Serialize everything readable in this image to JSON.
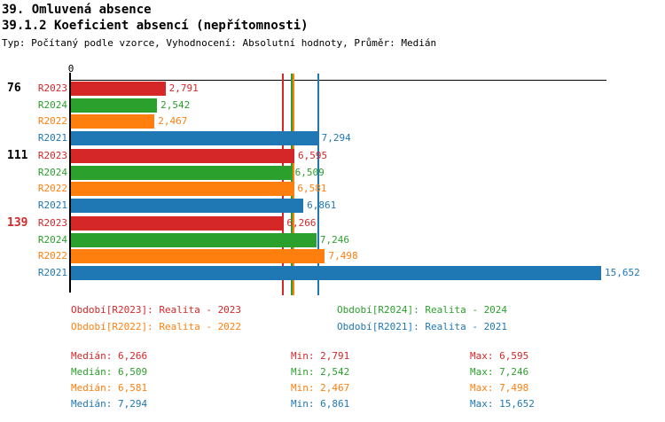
{
  "header": {
    "title": "39. Omluvená absence",
    "subtitle": "39.1.2 Koeficient absencí (nepřítomnosti)",
    "meta": "Typ: Počítaný podle vzorce, Vyhodnocení: Absolutní hodnoty, Průměr: Medián"
  },
  "chart_data": {
    "type": "bar",
    "orientation": "horizontal",
    "x_origin_label": "0",
    "xlim": [
      0,
      15652
    ],
    "grid": false,
    "series_order": [
      "R2023",
      "R2024",
      "R2022",
      "R2021"
    ],
    "series_colors": {
      "R2023": "#d62728",
      "R2024": "#2ca02c",
      "R2022": "#ff7f0e",
      "R2021": "#1f77b4"
    },
    "medians": {
      "R2023": 6266,
      "R2024": 6509,
      "R2022": 6581,
      "R2021": 7294
    },
    "groups": [
      {
        "label": "76",
        "label_color": "#000000",
        "bars": [
          {
            "series": "R2023",
            "value": 2791,
            "display": "2,791"
          },
          {
            "series": "R2024",
            "value": 2542,
            "display": "2,542"
          },
          {
            "series": "R2022",
            "value": 2467,
            "display": "2,467"
          },
          {
            "series": "R2021",
            "value": 7294,
            "display": "7,294"
          }
        ]
      },
      {
        "label": "111",
        "label_color": "#000000",
        "bars": [
          {
            "series": "R2023",
            "value": 6595,
            "display": "6,595"
          },
          {
            "series": "R2024",
            "value": 6509,
            "display": "6,509"
          },
          {
            "series": "R2022",
            "value": 6581,
            "display": "6,581"
          },
          {
            "series": "R2021",
            "value": 6861,
            "display": "6,861"
          }
        ]
      },
      {
        "label": "139",
        "label_color": "#d62728",
        "bars": [
          {
            "series": "R2023",
            "value": 6266,
            "display": "6,266"
          },
          {
            "series": "R2024",
            "value": 7246,
            "display": "7,246"
          },
          {
            "series": "R2022",
            "value": 7498,
            "display": "7,498"
          },
          {
            "series": "R2021",
            "value": 15652,
            "display": "15,652"
          }
        ]
      }
    ]
  },
  "legend": {
    "items": [
      {
        "series": "R2023",
        "text": "Období[R2023]: Realita - 2023"
      },
      {
        "series": "R2024",
        "text": "Období[R2024]: Realita - 2024"
      },
      {
        "series": "R2022",
        "text": "Období[R2022]: Realita - 2022"
      },
      {
        "series": "R2021",
        "text": "Období[R2021]: Realita - 2021"
      }
    ]
  },
  "stats": {
    "labels": {
      "median": "Medián",
      "min": "Min",
      "max": "Max"
    },
    "rows": [
      {
        "series": "R2023",
        "median": "6,266",
        "min": "2,791",
        "max": "6,595"
      },
      {
        "series": "R2024",
        "median": "6,509",
        "min": "2,542",
        "max": "7,246"
      },
      {
        "series": "R2022",
        "median": "6,581",
        "min": "2,467",
        "max": "7,498"
      },
      {
        "series": "R2021",
        "median": "7,294",
        "min": "6,861",
        "max": "15,652"
      }
    ]
  }
}
